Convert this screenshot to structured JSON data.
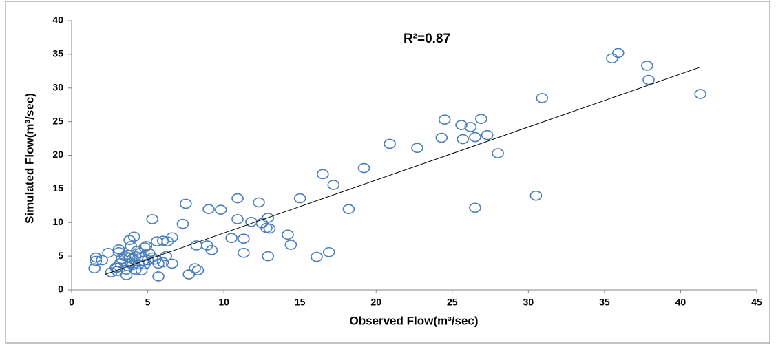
{
  "chart_data": {
    "type": "scatter",
    "annotation": "R²=0.87",
    "x_label": "Observed Flow(m³/sec)",
    "y_label": "Simulated Flow(m³/sec)",
    "xlim": [
      0,
      45
    ],
    "xticks": [
      0,
      5,
      10,
      15,
      20,
      25,
      30,
      35,
      40,
      45
    ],
    "ylim": [
      0,
      40
    ],
    "yticks": [
      0,
      5,
      10,
      15,
      20,
      25,
      30,
      35,
      40
    ],
    "grid": false,
    "color": "#4a7ebb",
    "x": [
      35.5,
      35.9,
      37.8,
      37.9,
      41.3,
      30.9,
      30.5,
      24.5,
      26.9,
      25.6,
      26.2,
      24.3,
      25.7,
      26.5,
      27.3,
      28.0,
      22.7,
      20.9,
      26.5,
      19.2,
      16.5,
      17.2,
      15.0,
      18.2,
      16.9,
      16.1,
      14.2,
      14.4,
      12.9,
      12.5,
      12.8,
      13.0,
      11.8,
      12.3,
      10.9,
      10.9,
      9.8,
      9.0,
      7.5,
      7.3,
      5.3,
      10.5,
      11.3,
      11.3,
      12.9,
      9.2,
      8.9,
      8.2,
      8.1,
      8.3,
      7.7,
      6.6,
      6.3,
      6.0,
      5.6,
      6.2,
      6.0,
      6.6,
      5.7,
      5.7,
      4.1,
      3.8,
      3.9,
      4.9,
      4.8,
      3.1,
      3.1,
      2.4,
      2.0,
      1.6,
      1.6,
      1.5,
      2.6,
      3.0,
      2.9,
      3.6,
      3.6,
      4.6,
      4.2,
      4.4,
      5.0,
      5.3,
      5.5,
      3.3,
      3.5,
      3.9,
      4.0,
      4.2,
      4.5,
      4.7,
      3.7,
      3.2,
      3.0,
      4.8,
      5.1,
      3.7,
      4.3,
      4.0,
      3.8,
      4.6
    ],
    "values": [
      34.4,
      35.2,
      33.3,
      31.2,
      29.1,
      28.5,
      14.0,
      25.3,
      25.4,
      24.5,
      24.2,
      22.6,
      22.4,
      22.7,
      23.0,
      20.3,
      21.1,
      21.7,
      12.2,
      18.1,
      17.2,
      15.6,
      13.6,
      12.0,
      5.6,
      4.9,
      8.2,
      6.7,
      10.7,
      9.9,
      9.2,
      9.1,
      10.1,
      13.0,
      13.6,
      10.5,
      11.9,
      12.0,
      12.8,
      9.8,
      10.5,
      7.7,
      7.6,
      5.5,
      5.0,
      5.9,
      6.6,
      6.6,
      3.2,
      2.9,
      2.3,
      7.8,
      7.2,
      7.3,
      7.2,
      5.0,
      4.1,
      3.9,
      2.0,
      3.9,
      7.9,
      7.4,
      6.5,
      6.5,
      6.3,
      6.0,
      5.6,
      5.5,
      4.4,
      4.8,
      4.3,
      3.2,
      2.6,
      2.8,
      3.3,
      2.2,
      3.0,
      2.9,
      3.0,
      3.8,
      4.4,
      4.8,
      4.5,
      4.6,
      5.0,
      4.0,
      4.6,
      5.0,
      5.5,
      4.3,
      3.5,
      4.0,
      3.3,
      3.8,
      5.4,
      5.2,
      5.8,
      3.7,
      4.8,
      4.9
    ],
    "trendline": {
      "x": [
        2.2,
        41.3
      ],
      "y": [
        2.3,
        33.1
      ],
      "color": "#000000"
    }
  }
}
